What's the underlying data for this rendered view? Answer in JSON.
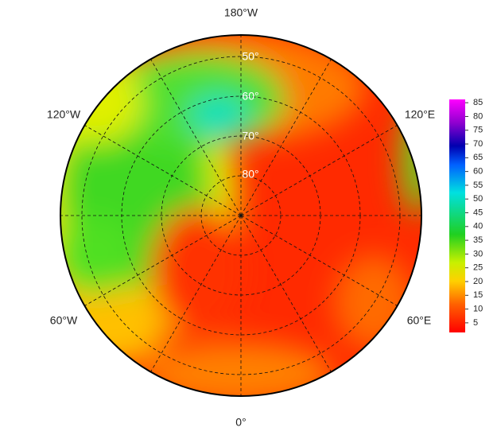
{
  "map": {
    "longitude_labels": [
      "180°W",
      "120°W",
      "120°E",
      "60°W",
      "60°E",
      "0°"
    ],
    "latitude_labels": [
      "50°",
      "60°",
      "70°",
      "80°"
    ]
  },
  "colorbar": {
    "range": [
      1.5,
      86.2
    ],
    "ticks": [
      5,
      10,
      15,
      20,
      25,
      30,
      35,
      40,
      45,
      50,
      55,
      60,
      65,
      70,
      75,
      80,
      85
    ]
  }
}
